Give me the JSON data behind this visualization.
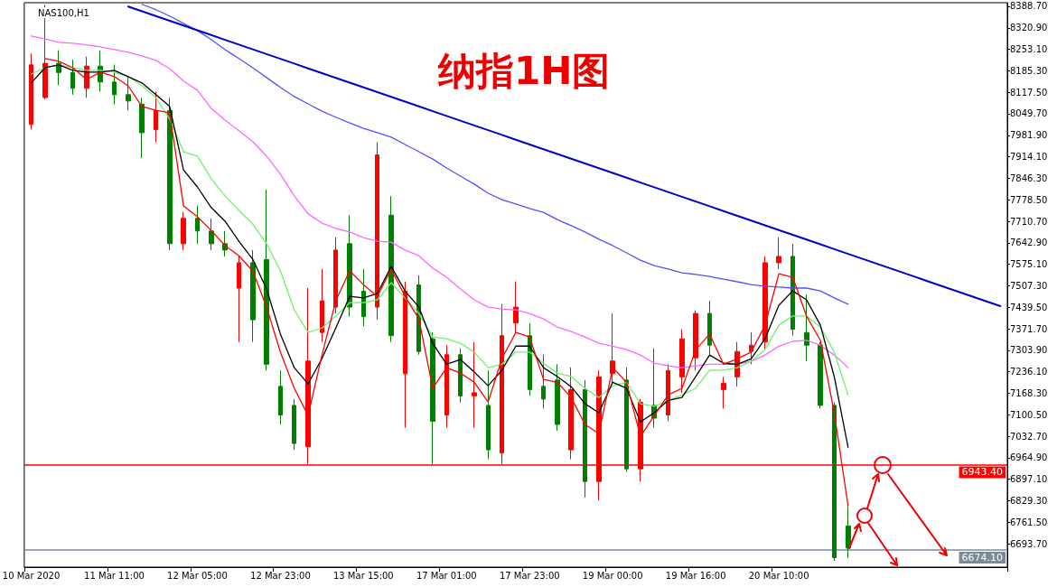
{
  "chart_data": {
    "type": "candlestick",
    "title": "纳指1H图",
    "subtitle": "NAS100,H1",
    "categories": [
      "10 Mar 2020",
      null,
      null,
      null,
      null,
      null,
      "11 Mar 11:00",
      null,
      null,
      null,
      null,
      null,
      "12 Mar 05:00",
      null,
      null,
      null,
      null,
      null,
      "12 Mar 23:00",
      null,
      null,
      null,
      null,
      null,
      "13 Mar 15:00",
      null,
      null,
      null,
      null,
      null,
      "17 Mar 01:00",
      null,
      null,
      null,
      null,
      null,
      "17 Mar 23:00",
      null,
      null,
      null,
      null,
      null,
      "19 Mar 00:00",
      null,
      null,
      null,
      null,
      null,
      "19 Mar 16:00",
      null,
      null,
      null,
      null,
      null,
      "20 Mar 10:00",
      null,
      null,
      null,
      null,
      null,
      null,
      null,
      null,
      null,
      null,
      null,
      null,
      null,
      null,
      null,
      null
    ],
    "ohlc": [
      [
        8016,
        8240,
        8000,
        8204
      ],
      [
        8101,
        8394,
        8095,
        8209
      ],
      [
        8209,
        8250,
        8140,
        8180
      ],
      [
        8180,
        8220,
        8110,
        8130
      ],
      [
        8130,
        8230,
        8100,
        8200
      ],
      [
        8200,
        8250,
        8120,
        8150
      ],
      [
        8150,
        8205,
        8080,
        8110
      ],
      [
        8110,
        8170,
        8060,
        8090
      ],
      [
        8080,
        8100,
        7910,
        7990
      ],
      [
        8000,
        8120,
        7960,
        8060
      ],
      [
        8060,
        8100,
        7620,
        7640
      ],
      [
        7640,
        7740,
        7620,
        7720
      ],
      [
        7720,
        7760,
        7640,
        7680
      ],
      [
        7680,
        7720,
        7620,
        7640
      ],
      [
        7640,
        7680,
        7600,
        7620
      ],
      [
        7500,
        7600,
        7330,
        7580
      ],
      [
        7580,
        7620,
        7330,
        7400
      ],
      [
        7590,
        7810,
        7240,
        7260
      ],
      [
        7190,
        7240,
        7070,
        7100
      ],
      [
        7130,
        7150,
        6990,
        7010
      ],
      [
        7000,
        7500,
        6945,
        7270
      ],
      [
        7360,
        7560,
        7330,
        7460
      ],
      [
        7440,
        7660,
        7420,
        7620
      ],
      [
        7640,
        7730,
        7410,
        7440
      ],
      [
        7490,
        7560,
        7380,
        7410
      ],
      [
        7440,
        7960,
        7400,
        7920
      ],
      [
        7730,
        7790,
        7330,
        7350
      ],
      [
        7230,
        7520,
        7060,
        7490
      ],
      [
        7510,
        7540,
        7290,
        7300
      ],
      [
        7340,
        7360,
        6945,
        7080
      ],
      [
        7100,
        7320,
        7060,
        7290
      ],
      [
        7290,
        7310,
        7140,
        7160
      ],
      [
        7160,
        7330,
        7060,
        7170
      ],
      [
        7130,
        7240,
        6960,
        6990
      ],
      [
        6980,
        7450,
        6945,
        7350
      ],
      [
        7390,
        7520,
        7360,
        7440
      ],
      [
        7350,
        7390,
        7160,
        7180
      ],
      [
        7190,
        7290,
        7120,
        7150
      ],
      [
        7210,
        7260,
        7050,
        7070
      ],
      [
        6990,
        7250,
        6960,
        7180
      ],
      [
        7180,
        7210,
        6840,
        6890
      ],
      [
        6890,
        7240,
        6830,
        7220
      ],
      [
        7230,
        7420,
        7200,
        7270
      ],
      [
        7210,
        7250,
        6920,
        6930
      ],
      [
        6930,
        7150,
        6890,
        7140
      ],
      [
        7130,
        7310,
        7060,
        7090
      ],
      [
        7100,
        7260,
        7080,
        7240
      ],
      [
        7220,
        7370,
        7170,
        7340
      ],
      [
        7280,
        7430,
        7240,
        7420
      ],
      [
        7420,
        7460,
        7290,
        7320
      ],
      [
        7180,
        7220,
        7120,
        7200
      ],
      [
        7220,
        7330,
        7190,
        7300
      ],
      [
        7300,
        7360,
        7260,
        7320
      ],
      [
        7330,
        7600,
        7310,
        7580
      ],
      [
        7580,
        7660,
        7560,
        7600
      ],
      [
        7600,
        7640,
        7350,
        7370
      ],
      [
        7360,
        7480,
        7270,
        7320
      ],
      [
        7320,
        7330,
        7120,
        7130
      ],
      [
        7130,
        7140,
        6640,
        6650
      ],
      [
        6750,
        6810,
        6650,
        6680
      ],
      null,
      null,
      null,
      null,
      null,
      null,
      null,
      null,
      null,
      null,
      null
    ],
    "series": [
      {
        "type": "line",
        "color": "#ff66ff",
        "values": [
          8295,
          8286,
          8275,
          8272,
          8267,
          8261,
          8252,
          8244,
          8232,
          8218,
          8192,
          8153,
          8124,
          8067,
          8030,
          7996,
          7962,
          7916,
          7859,
          7791,
          7734,
          7705,
          7688,
          7677,
          7659,
          7648,
          7645,
          7620,
          7602,
          7563,
          7534,
          7497,
          7463,
          7440,
          7434,
          7431,
          7420,
          7403,
          7377,
          7363,
          7346,
          7326,
          7317,
          7306,
          7289,
          7263,
          7255,
          7249,
          7255,
          7260,
          7260,
          7260,
          7269,
          7289,
          7317,
          7332,
          7335,
          7320,
          7289,
          7249,
          null,
          null,
          null,
          null,
          null,
          null,
          null,
          null,
          null,
          null,
          null
        ]
      },
      {
        "type": "line",
        "color": "#5050ff",
        "values": [
          null,
          null,
          null,
          null,
          null,
          null,
          null,
          null,
          8395,
          8378,
          8358,
          8335,
          8312,
          8284,
          8252,
          8224,
          8195,
          8164,
          8133,
          8104,
          8081,
          8058,
          8039,
          8021,
          8004,
          7990,
          7976,
          7953,
          7930,
          7907,
          7879,
          7853,
          7828,
          7799,
          7779,
          7765,
          7751,
          7739,
          7716,
          7697,
          7677,
          7654,
          7634,
          7611,
          7588,
          7571,
          7560,
          7548,
          7543,
          7537,
          7528,
          7520,
          7511,
          7506,
          7503,
          7500,
          7500,
          7491,
          7469,
          7449,
          null,
          null,
          null,
          null,
          null,
          null,
          null,
          null,
          null,
          null,
          null
        ]
      },
      {
        "type": "line",
        "color": "#70f070",
        "values": [
          8175,
          8195,
          8204,
          8195,
          8187,
          8187,
          8181,
          8167,
          8138,
          8101,
          8033,
          7930,
          7916,
          7845,
          7791,
          7745,
          7702,
          7640,
          7554,
          7431,
          7360,
          7374,
          7412,
          7454,
          7454,
          7463,
          7517,
          7469,
          7420,
          7346,
          7340,
          7326,
          7298,
          7249,
          7260,
          7298,
          7298,
          7263,
          7232,
          7221,
          7184,
          7155,
          7192,
          7203,
          7135,
          7127,
          7146,
          7163,
          7184,
          7241,
          7241,
          7249,
          7269,
          7306,
          7383,
          7412,
          7412,
          7377,
          7298,
          7163,
          null,
          null,
          null,
          null,
          null,
          null,
          null,
          null,
          null,
          null,
          null
        ]
      },
      {
        "type": "line",
        "color": "#000000",
        "values": [
          8147,
          8195,
          8204,
          8187,
          8181,
          8181,
          8187,
          8167,
          8147,
          8110,
          8073,
          7873,
          7819,
          7754,
          7711,
          7648,
          7591,
          7497,
          7355,
          7249,
          7198,
          7278,
          7374,
          7474,
          7469,
          7483,
          7568,
          7491,
          7440,
          7326,
          7260,
          7275,
          7235,
          7192,
          7241,
          7317,
          7317,
          7249,
          7221,
          7189,
          7135,
          7107,
          7203,
          7184,
          7078,
          7107,
          7146,
          7155,
          7221,
          7289,
          7263,
          7260,
          7277,
          7340,
          7446,
          7491,
          7463,
          7383,
          7221,
          6998,
          null,
          null,
          null,
          null,
          null,
          null,
          null,
          null,
          null,
          null,
          null
        ]
      },
      {
        "type": "line",
        "color": "#ff0000",
        "values": [
          null,
          8224,
          8215,
          8195,
          8158,
          8181,
          8167,
          8138,
          8073,
          8061,
          8053,
          7759,
          7725,
          7682,
          7634,
          7602,
          7554,
          7440,
          7298,
          7184,
          7098,
          7289,
          7460,
          7554,
          7511,
          7474,
          7560,
          7474,
          7403,
          7184,
          7249,
          7232,
          7203,
          7141,
          7278,
          7360,
          7346,
          7212,
          7203,
          7155,
          7070,
          7041,
          7249,
          7203,
          7032,
          7098,
          7163,
          7184,
          7306,
          7355,
          7260,
          7277,
          7298,
          7383,
          7545,
          7534,
          7412,
          7335,
          7107,
          6813,
          null,
          null,
          null,
          null,
          null,
          null,
          null,
          null,
          null,
          null,
          null
        ]
      },
      {
        "type": "line",
        "color": "#0000cc",
        "values": [
          null,
          null,
          null,
          null,
          null,
          null,
          null,
          8388,
          8373,
          8358,
          8343,
          8328,
          8313,
          8298,
          8283,
          8268,
          8253,
          8238,
          8223,
          8208,
          8193,
          8178,
          8163,
          8148,
          8133,
          8118,
          8103,
          8088,
          8073,
          8058,
          8043,
          8028,
          8013,
          7998,
          7983,
          7968,
          7953,
          7938,
          7923,
          7908,
          7893,
          7878,
          7863,
          7848,
          7833,
          7818,
          7803,
          7788,
          7773,
          7758,
          7743,
          7728,
          7713,
          7698,
          7683,
          7668,
          7653,
          7638,
          7623,
          7608,
          7593,
          7578,
          7563,
          7548,
          7533,
          7518,
          7503,
          7488,
          7473,
          7458,
          7443
        ]
      }
    ],
    "ylim": [
      6620,
      8400
    ],
    "yticks": [
      {
        "value": 6693.7,
        "label": "6693.70"
      },
      {
        "value": 6761.5,
        "label": "6761.50"
      },
      {
        "value": 6829.3,
        "label": "6829.30"
      },
      {
        "value": 6897.1,
        "label": "6897.10"
      },
      {
        "value": 6964.9,
        "label": "6964.90"
      },
      {
        "value": 7032.7,
        "label": "7032.70"
      },
      {
        "value": 7100.5,
        "label": "7100.50"
      },
      {
        "value": 7168.3,
        "label": "7168.30"
      },
      {
        "value": 7236.1,
        "label": "7236.10"
      },
      {
        "value": 7303.9,
        "label": "7303.90"
      },
      {
        "value": 7371.7,
        "label": "7371.70"
      },
      {
        "value": 7439.5,
        "label": "7439.50"
      },
      {
        "value": 7507.3,
        "label": "7507.30"
      },
      {
        "value": 7575.1,
        "label": "7575.10"
      },
      {
        "value": 7642.9,
        "label": "7642.90"
      },
      {
        "value": 7710.7,
        "label": "7710.70"
      },
      {
        "value": 7778.5,
        "label": "7778.50"
      },
      {
        "value": 7846.3,
        "label": "7846.30"
      },
      {
        "value": 7914.1,
        "label": "7914.10"
      },
      {
        "value": 7981.9,
        "label": "7981.90"
      },
      {
        "value": 8049.7,
        "label": "8049.70"
      },
      {
        "value": 8117.5,
        "label": "8117.50"
      },
      {
        "value": 8185.3,
        "label": "8185.30"
      },
      {
        "value": 8253.1,
        "label": "8253.10"
      },
      {
        "value": 8320.9,
        "label": "8320.90"
      },
      {
        "value": 8388.7,
        "label": "8388.70"
      }
    ],
    "ref_lines": [
      {
        "axis": "y",
        "value": 6943.4,
        "label": "6943.40",
        "color": "#ff0000"
      },
      {
        "axis": "y",
        "value": 6674.1,
        "label": "6674.10",
        "color": "#7a8a99"
      }
    ],
    "marker": "none",
    "line_style": "solid"
  }
}
